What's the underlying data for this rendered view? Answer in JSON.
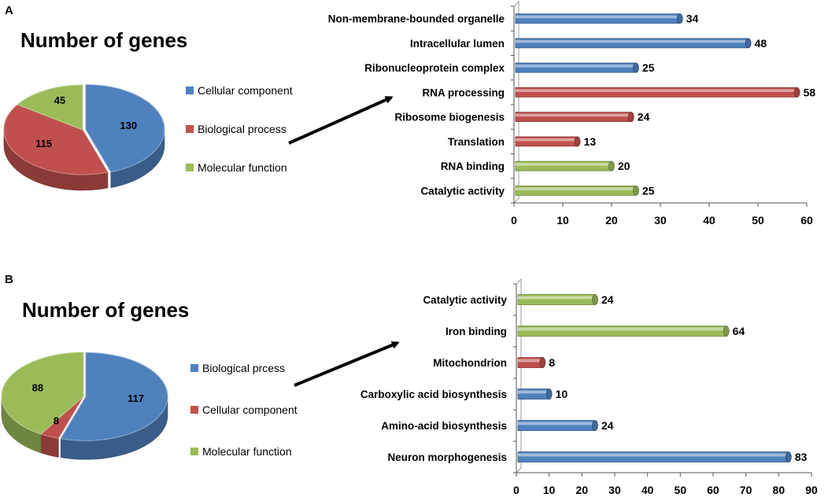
{
  "chart_data": [
    {
      "panel": "A",
      "type": "pie",
      "title": "Number of genes",
      "slices": [
        {
          "label": "Cellular component",
          "value": 130,
          "color": "#4f81bd"
        },
        {
          "label": "Biological process",
          "value": 115,
          "color": "#c0504d"
        },
        {
          "label": "Molecular function",
          "value": 45,
          "color": "#9bbb59"
        }
      ]
    },
    {
      "panel": "A",
      "type": "bar",
      "orientation": "horizontal",
      "categories": [
        "Non-membrane-bounded organelle",
        "Intracellular lumen",
        "Ribonucleoprotein complex",
        "RNA processing",
        "Ribosome biogenesis",
        "Translation",
        "RNA binding",
        "Catalytic activity"
      ],
      "values": [
        34,
        48,
        25,
        58,
        24,
        13,
        20,
        25
      ],
      "groups": [
        "Cellular component",
        "Cellular component",
        "Cellular component",
        "Biological process",
        "Biological process",
        "Biological process",
        "Molecular function",
        "Molecular function"
      ],
      "xlim": [
        0,
        60
      ],
      "xticks": [
        0,
        10,
        20,
        30,
        40,
        50,
        60
      ]
    },
    {
      "panel": "B",
      "type": "pie",
      "title": "Number of genes",
      "slices": [
        {
          "label": "Biological prcess",
          "value": 117,
          "color": "#4f81bd"
        },
        {
          "label": "Cellular component",
          "value": 8,
          "color": "#c0504d"
        },
        {
          "label": "Molecular function",
          "value": 88,
          "color": "#9bbb59"
        }
      ]
    },
    {
      "panel": "B",
      "type": "bar",
      "orientation": "horizontal",
      "categories": [
        "Catalytic activity",
        "Iron binding",
        "Mitochondrion",
        "Carboxylic acid biosynthesis",
        "Amino-acid biosynthesis",
        "Neuron morphogenesis"
      ],
      "values": [
        24,
        64,
        8,
        10,
        24,
        83
      ],
      "groups": [
        "Molecular function",
        "Molecular function",
        "Cellular component",
        "Biological prcess",
        "Biological prcess",
        "Biological prcess"
      ],
      "xlim": [
        0,
        90
      ],
      "xticks": [
        0,
        10,
        20,
        30,
        40,
        50,
        60,
        70,
        80,
        90
      ]
    }
  ]
}
